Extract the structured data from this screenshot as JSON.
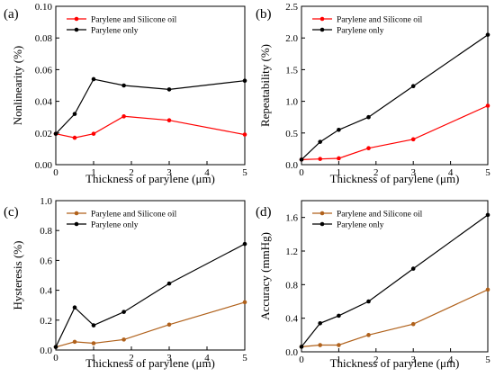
{
  "chart_data": [
    {
      "panel": "(a)",
      "type": "line",
      "xlabel": "Thickness of parylene (μm)",
      "ylabel": "Nonlinearity (%)",
      "xlim": [
        0,
        5
      ],
      "ylim": [
        0,
        0.1
      ],
      "xticks": [
        "0",
        "1",
        "2",
        "3",
        "4",
        "5"
      ],
      "yticks": [
        "0.00",
        "0.02",
        "0.04",
        "0.06",
        "0.08",
        "0.10"
      ],
      "legend_position": "top-left",
      "series": [
        {
          "name": "Parylene and Silicone oil",
          "color": "#ff0000",
          "x": [
            0,
            0.5,
            1,
            1.8,
            3,
            5
          ],
          "y": [
            0.0195,
            0.017,
            0.0195,
            0.0305,
            0.028,
            0.019
          ]
        },
        {
          "name": "Parylene only",
          "color": "#000000",
          "x": [
            0,
            0.5,
            1,
            1.8,
            3,
            5
          ],
          "y": [
            0.0195,
            0.032,
            0.054,
            0.05,
            0.0475,
            0.053
          ]
        }
      ]
    },
    {
      "panel": "(b)",
      "type": "line",
      "xlabel": "Thickness of parylene (μm)",
      "ylabel": "Repeatability (%)",
      "xlim": [
        0,
        5
      ],
      "ylim": [
        0,
        2.5
      ],
      "xticks": [
        "0",
        "1",
        "2",
        "3",
        "4",
        "5"
      ],
      "yticks": [
        "0.0",
        "0.5",
        "1.0",
        "1.5",
        "2.0",
        "2.5"
      ],
      "legend_position": "top-left",
      "series": [
        {
          "name": "Parylene and Silicone oil",
          "color": "#ff0000",
          "x": [
            0,
            0.5,
            1,
            1.8,
            3,
            5
          ],
          "y": [
            0.08,
            0.09,
            0.1,
            0.26,
            0.4,
            0.93
          ]
        },
        {
          "name": "Parylene only",
          "color": "#000000",
          "x": [
            0,
            0.5,
            1,
            1.8,
            3,
            5
          ],
          "y": [
            0.08,
            0.36,
            0.55,
            0.75,
            1.24,
            2.05
          ]
        }
      ]
    },
    {
      "panel": "(c)",
      "type": "line",
      "xlabel": "Thickness of parylene (μm)",
      "ylabel": "Hysteresis (%)",
      "xlim": [
        0,
        5
      ],
      "ylim": [
        0,
        1.0
      ],
      "xticks": [
        "0",
        "1",
        "2",
        "3",
        "4",
        "5"
      ],
      "yticks": [
        "0.0",
        "0.2",
        "0.4",
        "0.6",
        "0.8",
        "1.0"
      ],
      "legend_position": "top-left",
      "series": [
        {
          "name": "Parylene and Silicone oil",
          "color": "#b0611b",
          "x": [
            0,
            0.5,
            1,
            1.8,
            3,
            5
          ],
          "y": [
            0.02,
            0.055,
            0.045,
            0.07,
            0.17,
            0.32
          ]
        },
        {
          "name": "Parylene only",
          "color": "#000000",
          "x": [
            0,
            0.5,
            1,
            1.8,
            3,
            5
          ],
          "y": [
            0.02,
            0.285,
            0.165,
            0.255,
            0.445,
            0.71
          ]
        }
      ]
    },
    {
      "panel": "(d)",
      "type": "line",
      "xlabel": "Thickness of parylene (μm)",
      "ylabel": "Accuracy (mmHg)",
      "xlim": [
        0,
        5
      ],
      "ylim": [
        0,
        1.8
      ],
      "xticks": [
        "0",
        "1",
        "2",
        "3",
        "4",
        "5"
      ],
      "yticks": [
        "0.0",
        "0.4",
        "0.8",
        "1.2",
        "1.6"
      ],
      "legend_position": "top-left",
      "series": [
        {
          "name": "Parylene and Silicone oil",
          "color": "#b0611b",
          "x": [
            0,
            0.5,
            1,
            1.8,
            3,
            5
          ],
          "y": [
            0.06,
            0.08,
            0.08,
            0.2,
            0.33,
            0.74
          ]
        },
        {
          "name": "Parylene only",
          "color": "#000000",
          "x": [
            0,
            0.5,
            1,
            1.8,
            3,
            5
          ],
          "y": [
            0.06,
            0.34,
            0.43,
            0.6,
            0.99,
            1.63
          ]
        }
      ]
    }
  ]
}
